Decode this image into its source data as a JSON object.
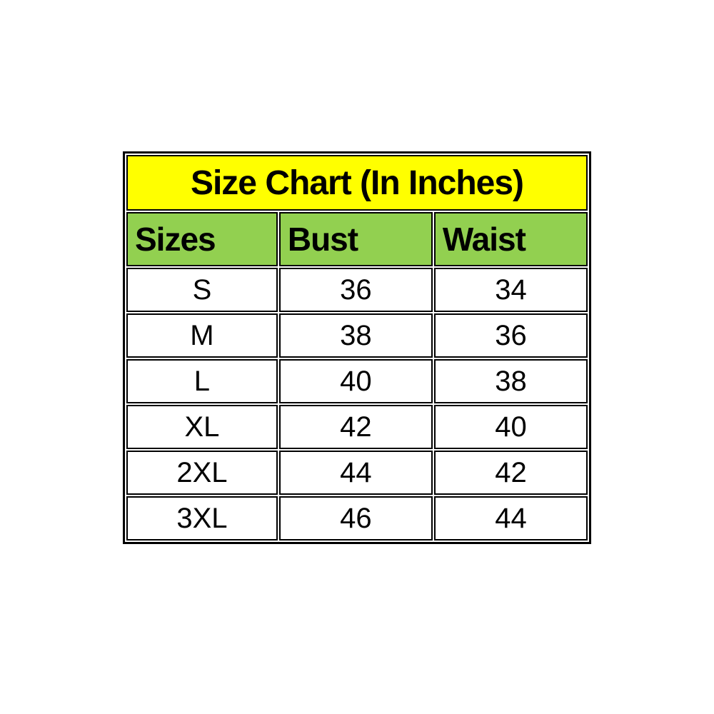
{
  "page": {
    "background_color": "#ffffff"
  },
  "size_chart": {
    "title": "Size Chart (In Inches)",
    "title_bg_color": "#ffff00",
    "header_bg_color": "#92d050",
    "border_color": "#000000",
    "text_color": "#000000",
    "columns": [
      "Sizes",
      "Bust",
      "Waist"
    ],
    "rows": [
      {
        "size": "S",
        "bust": "36",
        "waist": "34"
      },
      {
        "size": "M",
        "bust": "38",
        "waist": "36"
      },
      {
        "size": "L",
        "bust": "40",
        "waist": "38"
      },
      {
        "size": "XL",
        "bust": "42",
        "waist": "40"
      },
      {
        "size": "2XL",
        "bust": "44",
        "waist": "42"
      },
      {
        "size": "3XL",
        "bust": "46",
        "waist": "44"
      }
    ]
  }
}
